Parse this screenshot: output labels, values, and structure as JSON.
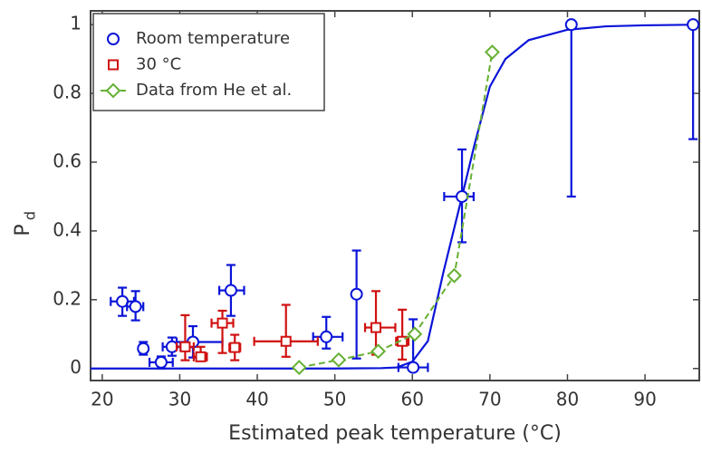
{
  "chart_data": {
    "type": "scatter",
    "xlabel": "Estimated peak temperature (°C)",
    "ylabel": "P",
    "ylabel_sub": "d",
    "xlim": [
      18.5,
      97
    ],
    "ylim": [
      -0.035,
      1.04
    ],
    "xticks": [
      20,
      30,
      40,
      50,
      60,
      70,
      80,
      90
    ],
    "yticks": [
      0,
      0.2,
      0.4,
      0.6,
      0.8,
      1
    ],
    "legend": "upper left",
    "series": [
      {
        "name": "Room temperature",
        "color": "#0a14d8",
        "marker": "circle",
        "x": [
          22.6,
          24.3,
          25.3,
          27.6,
          29.0,
          31.7,
          36.6,
          48.9,
          52.8,
          60.1,
          66.4,
          80.5,
          96.2
        ],
        "values": [
          0.195,
          0.18,
          0.058,
          0.018,
          0.063,
          0.077,
          0.227,
          0.092,
          0.216,
          0.003,
          0.5,
          1,
          1
        ],
        "x_lower": [
          21.1,
          23.2,
          24.8,
          26.1,
          27.8,
          29.6,
          35.1,
          47.2,
          null,
          58.2,
          64.1,
          null,
          null
        ],
        "x_upper": [
          24.1,
          25.3,
          25.8,
          29.1,
          30.1,
          35.5,
          38.3,
          51.0,
          null,
          62.0,
          67.9,
          null,
          null
        ],
        "y_lower": [
          0.153,
          0.14,
          0.04,
          0.0,
          0.037,
          0.032,
          0.153,
          0.058,
          0.029,
          0.0,
          0.367,
          0.5,
          0.667
        ],
        "y_upper": [
          0.235,
          0.225,
          0.077,
          0.035,
          0.09,
          0.123,
          0.301,
          0.15,
          0.343,
          0.143,
          0.637,
          null,
          null
        ]
      },
      {
        "name": "30 °C",
        "color": "#d01010",
        "marker": "square",
        "x": [
          30.7,
          32.7,
          35.5,
          37.1,
          43.7,
          55.3,
          58.7
        ],
        "values": [
          0.063,
          0.034,
          0.132,
          0.061,
          0.079,
          0.119,
          0.079
        ],
        "x_lower": [
          29.6,
          31.8,
          34.1,
          36.4,
          39.6,
          53.9,
          57.9
        ],
        "x_upper": [
          31.8,
          33.5,
          36.9,
          37.8,
          47.8,
          57.8,
          59.5
        ],
        "y_lower": [
          0.024,
          0.024,
          0.045,
          0.024,
          0.034,
          0.04,
          0.026
        ],
        "y_upper": [
          0.155,
          0.063,
          0.168,
          0.098,
          0.185,
          0.225,
          0.171
        ]
      },
      {
        "name": "Data from He et al.",
        "color": "#66b032",
        "marker": "diamond",
        "linestyle": "dashed",
        "x": [
          45.4,
          50.5,
          55.6,
          60.3,
          65.4,
          70.3
        ],
        "values": [
          0.003,
          0.025,
          0.05,
          0.1,
          0.27,
          0.92
        ]
      }
    ],
    "fit": {
      "color": "#0a14d8",
      "x": [
        18.5,
        50,
        56,
        58,
        60,
        62,
        64,
        66.4,
        68,
        70,
        72,
        75,
        80,
        85,
        90,
        97
      ],
      "values": [
        0,
        0,
        0.001,
        0.003,
        0.02,
        0.08,
        0.28,
        0.5,
        0.65,
        0.82,
        0.9,
        0.955,
        0.985,
        0.995,
        0.998,
        1
      ]
    }
  }
}
